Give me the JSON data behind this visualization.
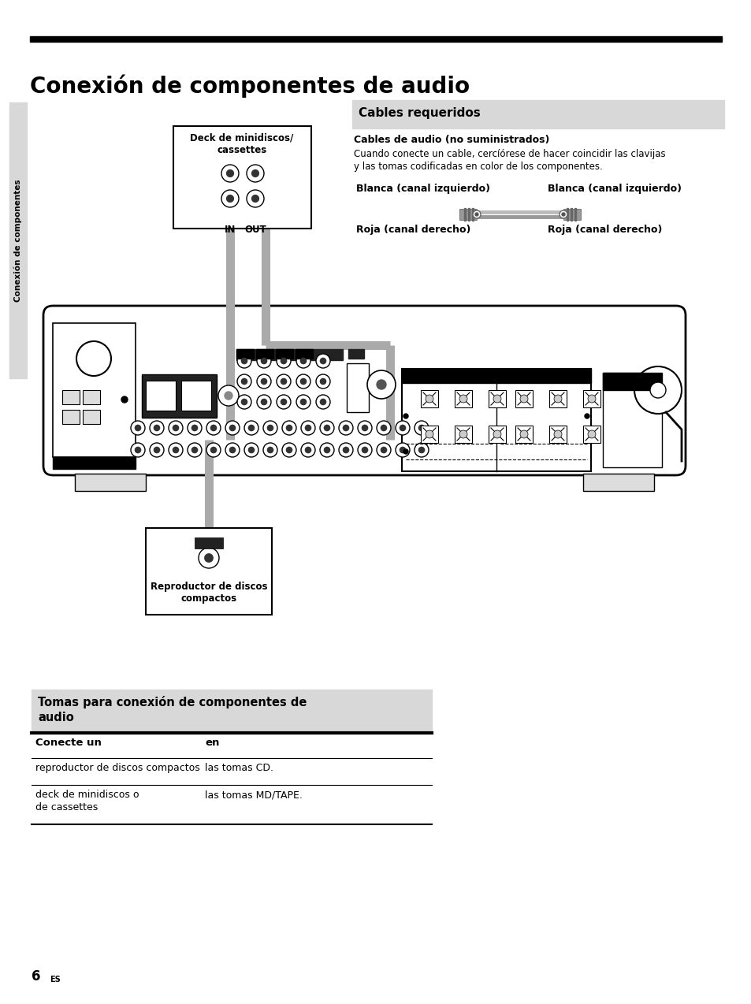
{
  "title": "Conexión de componentes de audio",
  "bg_color": "#ffffff",
  "sidebar_text": "Conexión de componentes",
  "cables_requeridos_title": "Cables requeridos",
  "cables_subtitle": "Cables de audio (no suministrados)",
  "cables_desc1": "Cuando conecte un cable, cercíórese de hacer coincidir las clavijas",
  "cables_desc2": "y las tomas codificadas en color de los componentes.",
  "blanca_izq": "Blanca (canal izquierdo)",
  "roja_der": "Roja (canal derecho)",
  "deck_label_line1": "Deck de minidiscos/",
  "deck_label_line2": "cassettes",
  "cd_label_line1": "Reproductor de discos",
  "cd_label_line2": "compactos",
  "in_label": "IN",
  "out_label": "OUT",
  "table_title_line1": "Tomas para conexión de componentes de",
  "table_title_line2": "audio",
  "table_col1": "Conecte un",
  "table_col2": "en",
  "table_row1_col1": "reproductor de discos compactos",
  "table_row1_col2": "las tomas CD.",
  "table_row2_col1_line1": "deck de minidiscos o",
  "table_row2_col1_line2": "de cassettes",
  "table_row2_col2": "las tomas MD/TAPE.",
  "page_number": "6",
  "page_suffix": "ES",
  "gray_light": "#d8d8d8",
  "gray_mid": "#aaaaaa",
  "gray_dark": "#888888",
  "black": "#000000"
}
